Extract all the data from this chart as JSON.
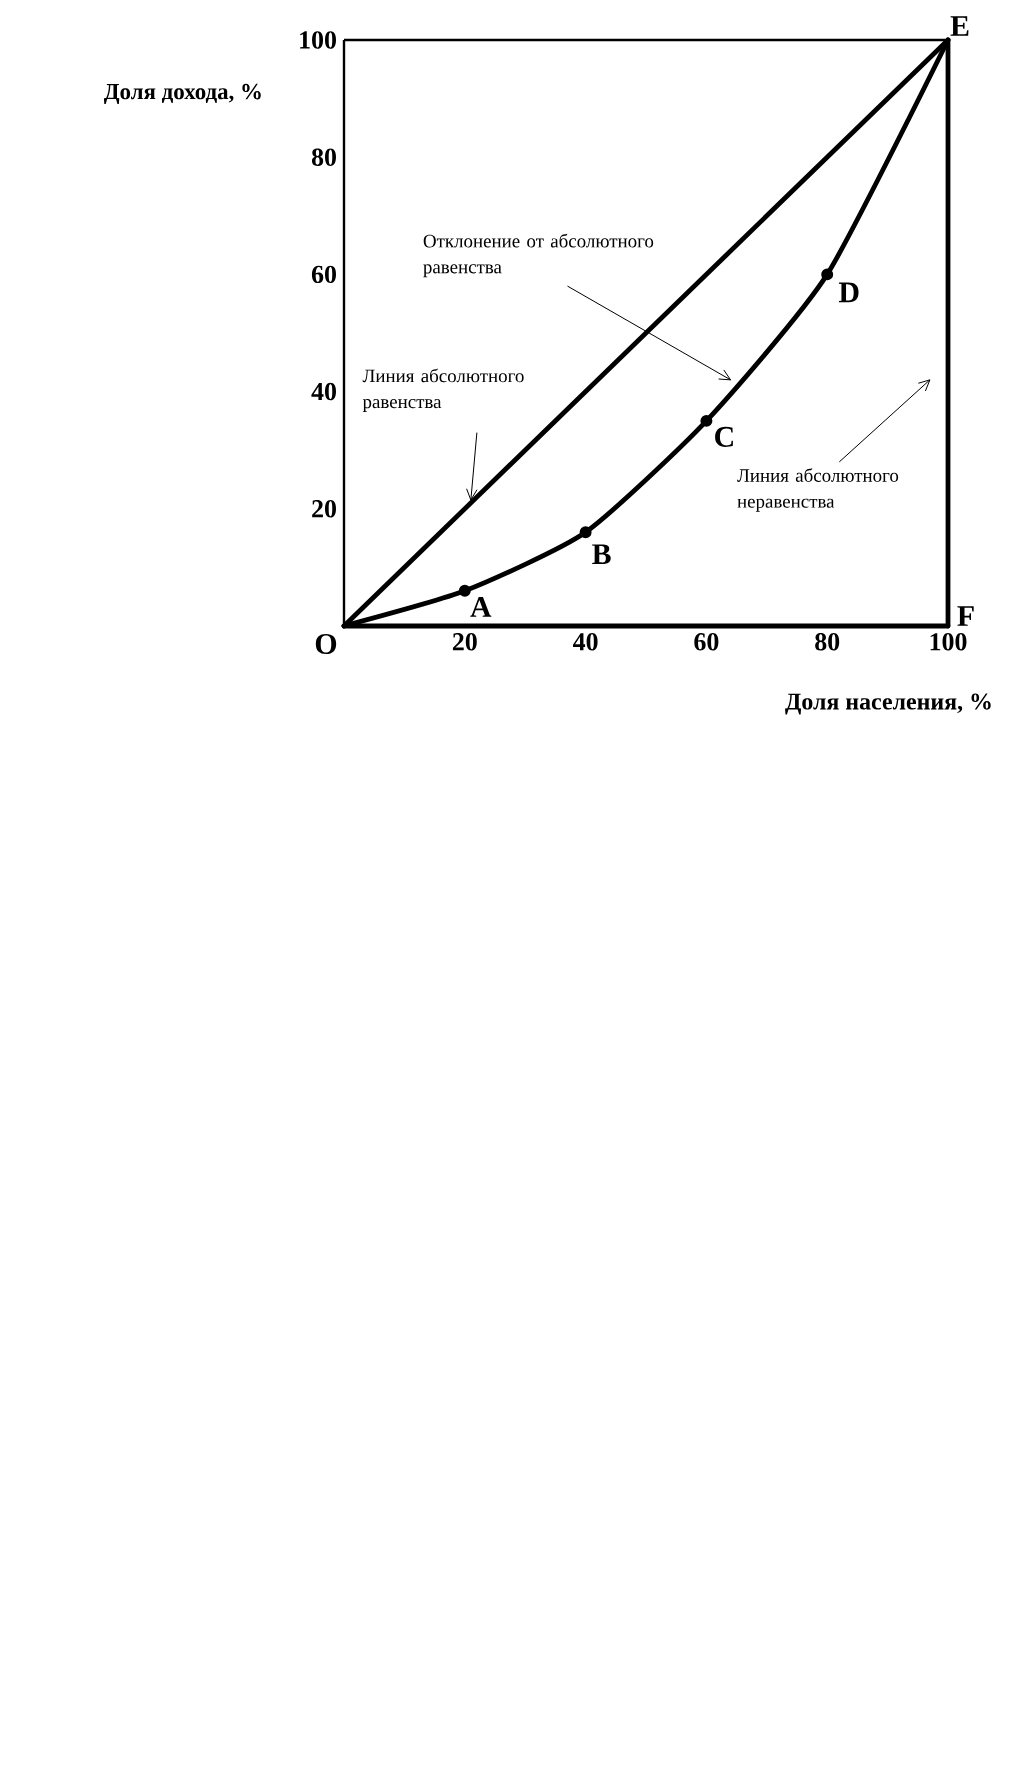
{
  "chart_data": {
    "type": "line",
    "xlabel": "Доля населения, %",
    "ylabel": "Доля дохода, %",
    "xlim": [
      0,
      100
    ],
    "ylim": [
      0,
      100
    ],
    "xticks": [
      20,
      40,
      60,
      80,
      100
    ],
    "yticks": [
      20,
      40,
      60,
      80,
      100
    ],
    "grid": false,
    "series": [
      {
        "x": [
          0,
          100
        ],
        "values": [
          0,
          100
        ],
        "color": "#000000"
      },
      {
        "x": [
          0,
          20,
          40,
          60,
          80,
          100
        ],
        "values": [
          0,
          6,
          16,
          35,
          60,
          100
        ],
        "color": "#000000",
        "marker": "circle"
      }
    ],
    "ref_lines": [
      {
        "axis": "x",
        "value": 100,
        "color": "#000000",
        "label": "Линия абсолютного неравенства"
      }
    ],
    "annotations": [
      {
        "text": "O",
        "x": 0,
        "y": 0
      },
      {
        "text": "A",
        "x": 20,
        "y": 6
      },
      {
        "text": "B",
        "x": 40,
        "y": 16
      },
      {
        "text": "C",
        "x": 60,
        "y": 35
      },
      {
        "text": "D",
        "x": 80,
        "y": 60
      },
      {
        "text": "E",
        "x": 100,
        "y": 100
      },
      {
        "text": "F",
        "x": 100,
        "y": 0
      },
      "Линия абсолютного равенства",
      "Отклонение от абсолютного равенства"
    ]
  }
}
